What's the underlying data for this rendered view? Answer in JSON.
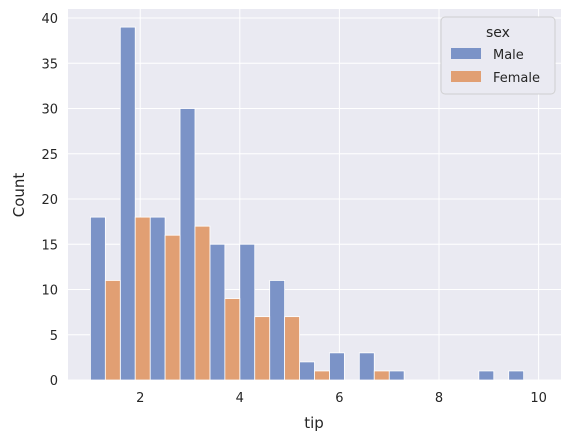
{
  "chart_data": {
    "type": "bar",
    "xlabel": "tip",
    "ylabel": "Count",
    "xlim": [
      0.55,
      10.45
    ],
    "ylim": [
      0,
      41
    ],
    "x_ticks": [
      "2",
      "4",
      "6",
      "8",
      "10"
    ],
    "y_ticks": [
      "0",
      "5",
      "10",
      "15",
      "20",
      "25",
      "30",
      "35",
      "40"
    ],
    "bin_starts": [
      1.0,
      1.6,
      2.2,
      2.8,
      3.4,
      4.0,
      4.6,
      5.2,
      5.8,
      6.4,
      7.0,
      7.6,
      8.2,
      8.8,
      9.4
    ],
    "bin_width": 0.6,
    "series": [
      {
        "name": "Male",
        "color": "#7b93c7",
        "values": [
          18,
          39,
          18,
          30,
          15,
          15,
          11,
          2,
          3,
          3,
          1,
          0,
          0,
          1,
          1
        ]
      },
      {
        "name": "Female",
        "color": "#e19f73",
        "values": [
          11,
          18,
          16,
          17,
          9,
          7,
          7,
          1,
          0,
          1,
          0,
          0,
          0,
          0,
          0
        ]
      }
    ],
    "legend": {
      "title": "sex",
      "placement": "top-right"
    },
    "grid": true,
    "background": "#eaeaf2"
  }
}
